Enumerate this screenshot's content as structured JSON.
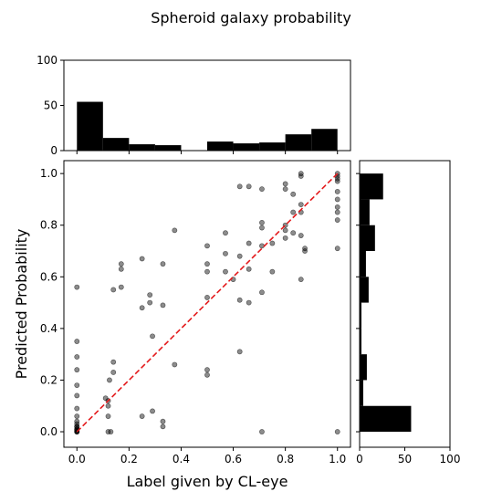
{
  "chart_data": {
    "type": "scatter",
    "title": "Spheroid galaxy probability",
    "xlabel": "Label given by CL-eye",
    "ylabel": "Predicted Probability",
    "xlim": [
      -0.05,
      1.05
    ],
    "ylim": [
      -0.06,
      1.05
    ],
    "x_ticks": [
      "0.0",
      "0.2",
      "0.4",
      "0.6",
      "0.8",
      "1.0"
    ],
    "y_ticks": [
      "0.0",
      "0.2",
      "0.4",
      "0.6",
      "0.8",
      "1.0"
    ],
    "reference_line": {
      "from": [
        0,
        0
      ],
      "to": [
        1,
        1
      ],
      "style": "dashed",
      "color": "#e41a1c"
    },
    "point_color": "#000000",
    "points": [
      [
        0.0,
        0.56
      ],
      [
        0.0,
        0.35
      ],
      [
        0.0,
        0.29
      ],
      [
        0.0,
        0.24
      ],
      [
        0.0,
        0.18
      ],
      [
        0.0,
        0.14
      ],
      [
        0.0,
        0.09
      ],
      [
        0.0,
        0.06
      ],
      [
        0.0,
        0.04
      ],
      [
        0.0,
        0.02
      ],
      [
        0.0,
        0.01
      ],
      [
        0.0,
        0.005
      ],
      [
        0.0,
        0.0
      ],
      [
        0.0,
        0.0
      ],
      [
        0.0,
        0.0
      ],
      [
        0.0,
        0.01
      ],
      [
        0.0,
        0.02
      ],
      [
        0.0,
        0.03
      ],
      [
        0.11,
        0.13
      ],
      [
        0.12,
        0.12
      ],
      [
        0.12,
        0.1
      ],
      [
        0.12,
        0.06
      ],
      [
        0.12,
        0.0
      ],
      [
        0.13,
        0.0
      ],
      [
        0.125,
        0.2
      ],
      [
        0.14,
        0.27
      ],
      [
        0.14,
        0.23
      ],
      [
        0.14,
        0.55
      ],
      [
        0.17,
        0.56
      ],
      [
        0.17,
        0.63
      ],
      [
        0.17,
        0.65
      ],
      [
        0.25,
        0.67
      ],
      [
        0.25,
        0.48
      ],
      [
        0.25,
        0.06
      ],
      [
        0.28,
        0.5
      ],
      [
        0.28,
        0.53
      ],
      [
        0.29,
        0.37
      ],
      [
        0.29,
        0.08
      ],
      [
        0.33,
        0.65
      ],
      [
        0.33,
        0.49
      ],
      [
        0.33,
        0.04
      ],
      [
        0.33,
        0.02
      ],
      [
        0.375,
        0.78
      ],
      [
        0.375,
        0.26
      ],
      [
        0.5,
        0.72
      ],
      [
        0.5,
        0.65
      ],
      [
        0.5,
        0.62
      ],
      [
        0.5,
        0.52
      ],
      [
        0.5,
        0.24
      ],
      [
        0.5,
        0.22
      ],
      [
        0.57,
        0.69
      ],
      [
        0.57,
        0.62
      ],
      [
        0.57,
        0.77
      ],
      [
        0.6,
        0.59
      ],
      [
        0.625,
        0.95
      ],
      [
        0.625,
        0.68
      ],
      [
        0.625,
        0.51
      ],
      [
        0.625,
        0.31
      ],
      [
        0.66,
        0.95
      ],
      [
        0.66,
        0.73
      ],
      [
        0.66,
        0.63
      ],
      [
        0.66,
        0.5
      ],
      [
        0.71,
        0.94
      ],
      [
        0.71,
        0.81
      ],
      [
        0.71,
        0.79
      ],
      [
        0.71,
        0.72
      ],
      [
        0.71,
        0.54
      ],
      [
        0.71,
        0.0
      ],
      [
        0.75,
        0.73
      ],
      [
        0.75,
        0.62
      ],
      [
        0.8,
        0.96
      ],
      [
        0.8,
        0.94
      ],
      [
        0.8,
        0.8
      ],
      [
        0.8,
        0.78
      ],
      [
        0.8,
        0.75
      ],
      [
        0.83,
        0.92
      ],
      [
        0.83,
        0.85
      ],
      [
        0.83,
        0.77
      ],
      [
        0.86,
        0.99
      ],
      [
        0.86,
        1.0
      ],
      [
        0.86,
        0.88
      ],
      [
        0.86,
        0.85
      ],
      [
        0.86,
        0.76
      ],
      [
        0.86,
        0.59
      ],
      [
        0.875,
        0.71
      ],
      [
        0.875,
        0.7
      ],
      [
        1.0,
        1.0
      ],
      [
        1.0,
        0.99
      ],
      [
        1.0,
        0.98
      ],
      [
        1.0,
        0.97
      ],
      [
        1.0,
        0.93
      ],
      [
        1.0,
        0.9
      ],
      [
        1.0,
        0.87
      ],
      [
        1.0,
        0.85
      ],
      [
        1.0,
        0.82
      ],
      [
        1.0,
        0.71
      ],
      [
        1.0,
        0.0
      ]
    ],
    "top_histogram": {
      "ylim": [
        0,
        100
      ],
      "y_ticks": [
        "0",
        "50",
        "100"
      ],
      "bins": [
        0.0,
        0.1,
        0.2,
        0.3,
        0.4,
        0.5,
        0.6,
        0.7,
        0.8,
        0.9,
        1.0
      ],
      "counts": [
        54,
        14,
        7,
        6,
        0,
        10,
        8,
        9,
        18,
        24
      ]
    },
    "right_histogram": {
      "xlim": [
        0,
        100
      ],
      "x_ticks": [
        "0",
        "50",
        "100"
      ],
      "bins": [
        0.0,
        0.1,
        0.2,
        0.3,
        0.4,
        0.5,
        0.6,
        0.7,
        0.8,
        0.9,
        1.0
      ],
      "counts": [
        57,
        4,
        8,
        2,
        2,
        10,
        7,
        17,
        11,
        26
      ]
    }
  }
}
